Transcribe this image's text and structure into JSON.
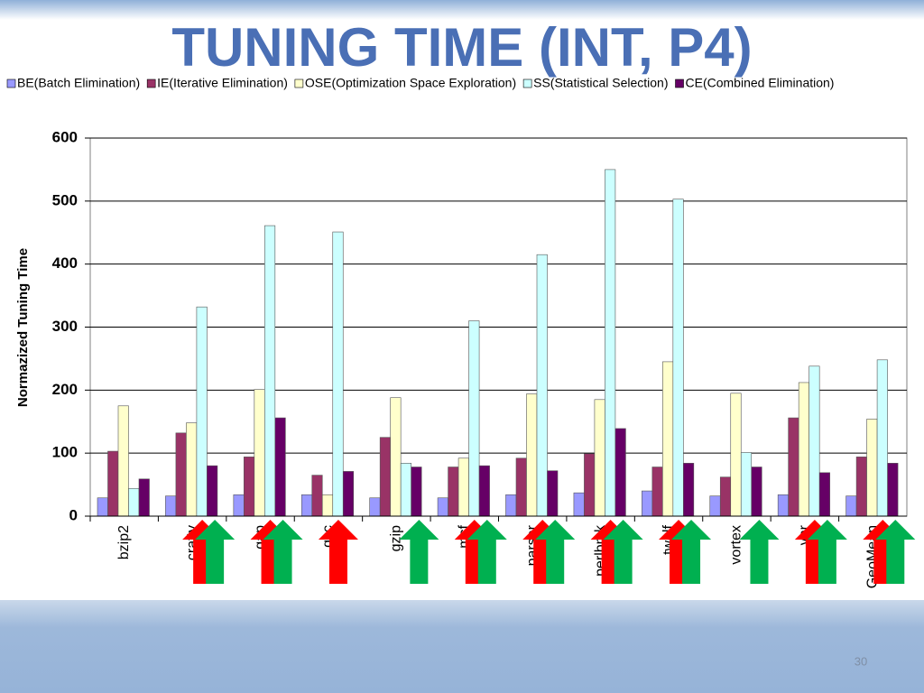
{
  "chart_data": {
    "type": "bar",
    "title": "TUNING TIME (INT, P4)",
    "y_label": "Normazized Tuning Time",
    "categories": [
      "bzip2",
      "crafty",
      "gap",
      "gcc",
      "gzip",
      "mcf",
      "parser",
      "perlbmk",
      "twolf",
      "vortex",
      "vpr",
      "GeoMean"
    ],
    "series": [
      {
        "name": "BE(Batch Elimination)",
        "color": "#9999ff",
        "values": [
          29,
          32,
          34,
          34,
          29,
          29,
          34,
          37,
          40,
          32,
          34,
          32
        ]
      },
      {
        "name": "IE(Iterative Elimination)",
        "color": "#993366",
        "values": [
          103,
          132,
          94,
          65,
          125,
          78,
          92,
          99,
          78,
          62,
          156,
          94
        ]
      },
      {
        "name": "OSE(Optimization Space Exploration)",
        "color": "#ffffcc",
        "values": [
          175,
          148,
          201,
          34,
          188,
          92,
          194,
          185,
          245,
          195,
          212,
          154
        ]
      },
      {
        "name": "SS(Statistical Selection)",
        "color": "#ccffff",
        "values": [
          44,
          332,
          461,
          451,
          84,
          310,
          415,
          550,
          503,
          101,
          238,
          248
        ]
      },
      {
        "name": "CE(Combined Elimination)",
        "color": "#660066",
        "values": [
          59,
          80,
          156,
          71,
          78,
          80,
          72,
          139,
          84,
          78,
          69,
          84
        ]
      }
    ],
    "ylim": [
      0,
      600
    ],
    "yticks": [
      0,
      100,
      200,
      300,
      400,
      500,
      600
    ],
    "grid": true,
    "legend": "top"
  },
  "page_number": "30"
}
